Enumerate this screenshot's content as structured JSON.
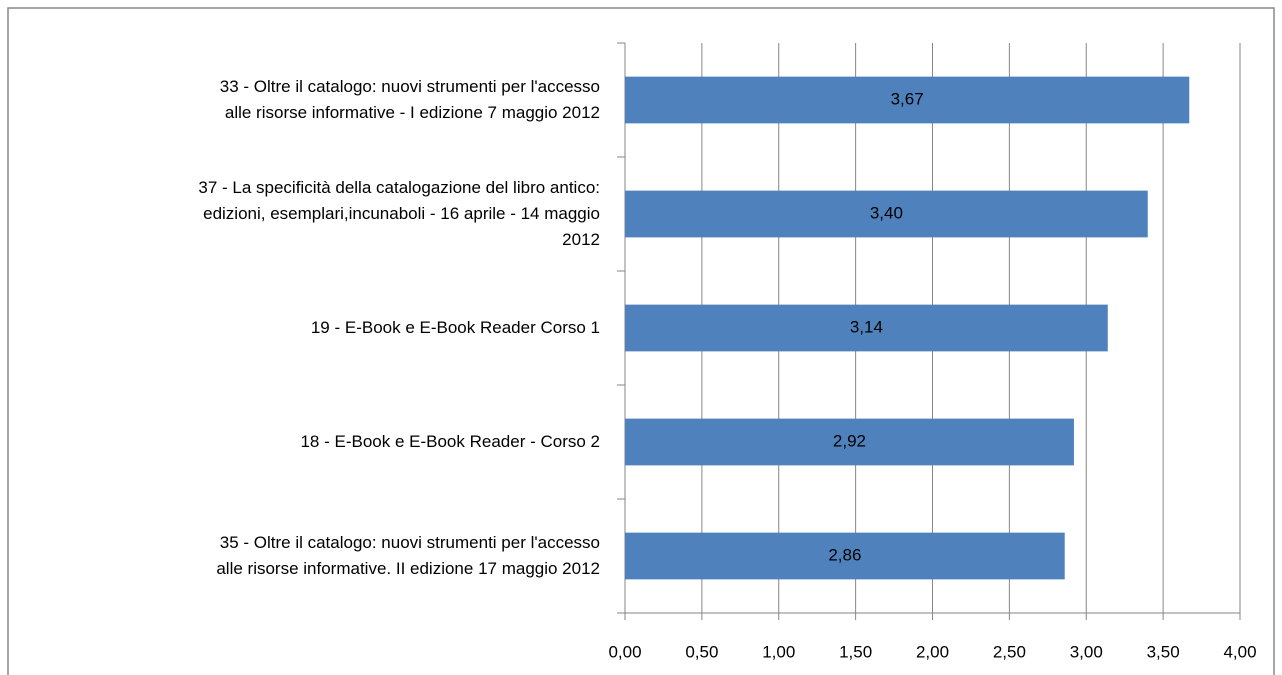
{
  "chart_data": {
    "type": "bar",
    "orientation": "horizontal",
    "categories": [
      "33 - Oltre il catalogo: nuovi strumenti per l'accesso\nalle risorse informative - I edizione 7 maggio 2012",
      "37 - La specificità della catalogazione del libro antico:\nedizioni, esemplari,incunaboli - 16 aprile - 14 maggio\n2012",
      "19 - E-Book e E-Book Reader Corso 1",
      "18 - E-Book e E-Book Reader - Corso 2",
      "35 - Oltre il catalogo: nuovi strumenti per l'accesso\nalle risorse informative. II edizione 17 maggio 2012"
    ],
    "values": [
      3.67,
      3.4,
      3.14,
      2.92,
      2.86
    ],
    "value_labels": [
      "3,67",
      "3,40",
      "3,14",
      "2,92",
      "2,86"
    ],
    "color": "#4f81bd",
    "xlim": [
      0,
      4
    ],
    "xticks": [
      {
        "value": 0,
        "label": "0,00"
      },
      {
        "value": 0.5,
        "label": "0,50"
      },
      {
        "value": 1,
        "label": "1,00"
      },
      {
        "value": 1.5,
        "label": "1,50"
      },
      {
        "value": 2,
        "label": "2,00"
      },
      {
        "value": 2.5,
        "label": "2,50"
      },
      {
        "value": 3,
        "label": "3,00"
      },
      {
        "value": 3.5,
        "label": "3,50"
      },
      {
        "value": 4,
        "label": "4,00"
      }
    ],
    "grid": true
  }
}
